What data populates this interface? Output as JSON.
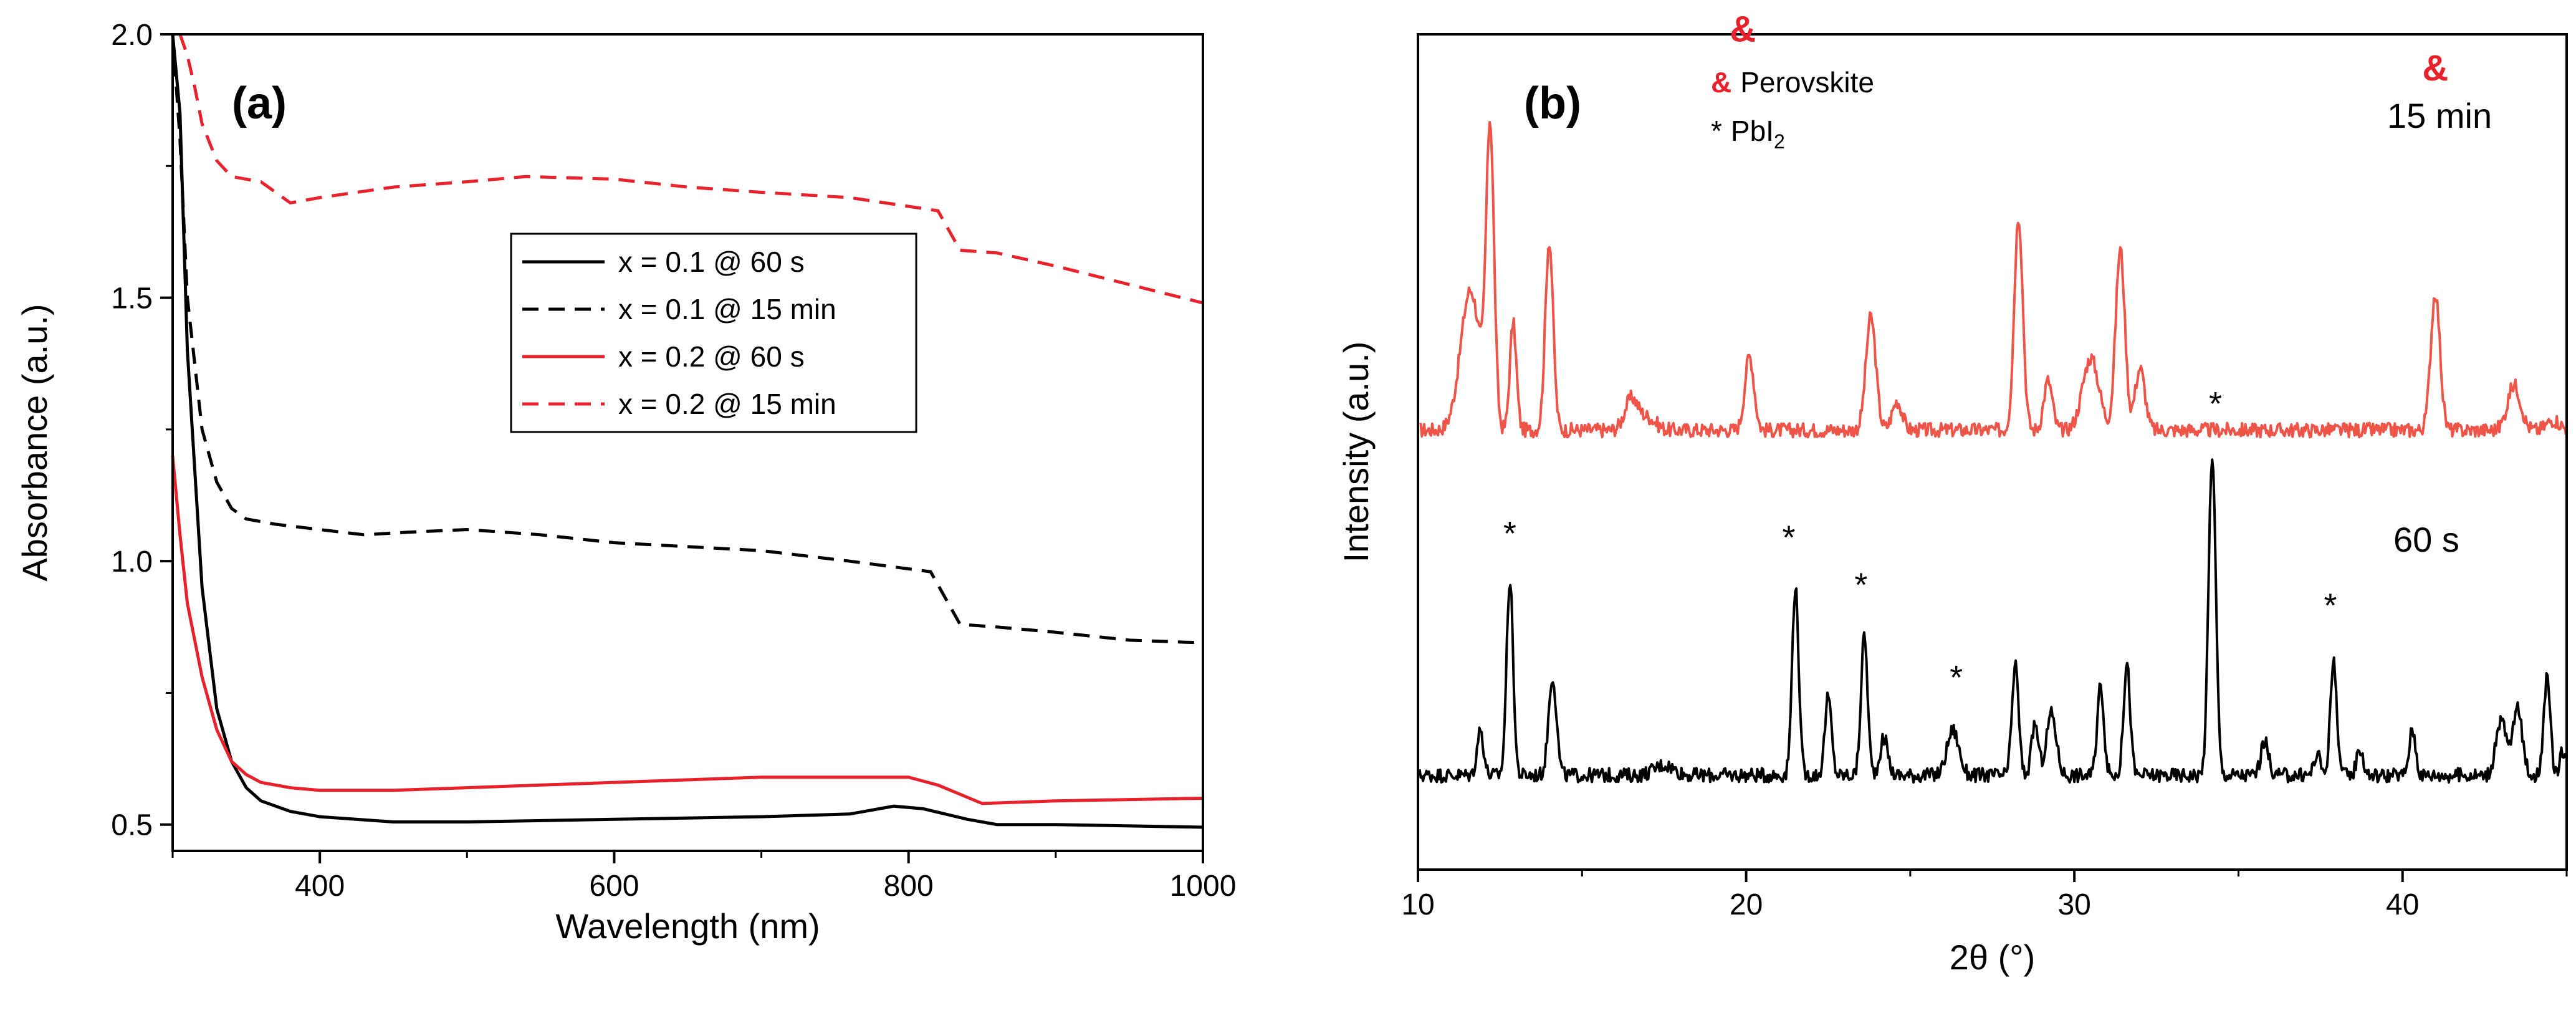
{
  "colors": {
    "black_series": "#000000",
    "red_series": "#e8212a",
    "xrd_red": "#ee5448"
  },
  "chart_data": [
    {
      "type": "line",
      "panel_label": "(a)",
      "xlabel": "Wavelength (nm)",
      "ylabel": "Absorbance (a.u.)",
      "xlim": [
        300,
        1000
      ],
      "ylim": [
        0.45,
        2.0
      ],
      "xticks": [
        400,
        600,
        800,
        1000
      ],
      "yticks": [
        0.5,
        1.0,
        1.5,
        2.0
      ],
      "xtick_labels": [
        "400",
        "600",
        "800",
        "1000"
      ],
      "ytick_labels": [
        "0.5",
        "1.0",
        "1.5",
        "2.0"
      ],
      "grid": false,
      "legend_position": "center-right",
      "series": [
        {
          "name": "x = 0.1 @ 60 s",
          "color": "#000000",
          "style": "solid",
          "x": [
            300,
            305,
            310,
            320,
            330,
            340,
            350,
            360,
            380,
            400,
            450,
            500,
            600,
            700,
            760,
            790,
            810,
            840,
            860,
            900,
            1000
          ],
          "y": [
            2.0,
            1.85,
            1.4,
            0.95,
            0.72,
            0.62,
            0.57,
            0.545,
            0.525,
            0.515,
            0.505,
            0.505,
            0.51,
            0.515,
            0.52,
            0.535,
            0.53,
            0.51,
            0.5,
            0.5,
            0.495
          ]
        },
        {
          "name": "x = 0.1 @ 15 min",
          "color": "#000000",
          "style": "dashed",
          "x": [
            300,
            305,
            310,
            320,
            330,
            340,
            350,
            370,
            400,
            430,
            460,
            500,
            550,
            600,
            700,
            760,
            815,
            835,
            860,
            900,
            950,
            1000
          ],
          "y": [
            2.0,
            1.8,
            1.5,
            1.25,
            1.15,
            1.1,
            1.08,
            1.07,
            1.06,
            1.05,
            1.055,
            1.06,
            1.05,
            1.035,
            1.02,
            1.0,
            0.98,
            0.88,
            0.875,
            0.865,
            0.85,
            0.845
          ]
        },
        {
          "name": "x = 0.2 @ 60 s",
          "color": "#e8212a",
          "style": "solid",
          "x": [
            300,
            305,
            310,
            320,
            330,
            340,
            350,
            360,
            380,
            400,
            450,
            500,
            600,
            700,
            760,
            800,
            820,
            850,
            900,
            1000
          ],
          "y": [
            1.2,
            1.05,
            0.92,
            0.78,
            0.68,
            0.62,
            0.595,
            0.58,
            0.57,
            0.565,
            0.565,
            0.57,
            0.58,
            0.59,
            0.59,
            0.59,
            0.575,
            0.54,
            0.545,
            0.55
          ]
        },
        {
          "name": "x = 0.2 @ 15 min",
          "color": "#e8212a",
          "style": "dashed",
          "x": [
            305,
            310,
            315,
            320,
            330,
            340,
            350,
            360,
            380,
            400,
            450,
            500,
            540,
            600,
            650,
            700,
            760,
            820,
            835,
            860,
            900,
            1000
          ],
          "y": [
            2.0,
            1.96,
            1.9,
            1.83,
            1.76,
            1.73,
            1.725,
            1.72,
            1.68,
            1.69,
            1.71,
            1.72,
            1.73,
            1.725,
            1.71,
            1.7,
            1.69,
            1.665,
            1.59,
            1.585,
            1.56,
            1.49
          ]
        }
      ]
    },
    {
      "type": "line",
      "panel_label": "(b)",
      "xlabel": "2θ (°)",
      "ylabel": "Intensity (a.u.)",
      "xlim": [
        10,
        45
      ],
      "xticks": [
        10,
        20,
        30,
        40
      ],
      "xtick_labels": [
        "10",
        "20",
        "30",
        "40"
      ],
      "y_tick_labels_shown": false,
      "grid": false,
      "legend_entries": [
        {
          "marker": "&",
          "label": "Perovskite",
          "color": "#e8212a"
        },
        {
          "marker": "*",
          "label": "PbI",
          "subscript": "2",
          "color": "#000000"
        }
      ],
      "series": [
        {
          "name": "15 min",
          "color": "#ee5448",
          "baseline": 60,
          "peaks": [
            [
              11.6,
              68,
              0.3
            ],
            [
              12.2,
              142,
              0.12
            ],
            [
              12.9,
              52,
              0.1
            ],
            [
              14.0,
              92,
              0.12
            ],
            [
              16.5,
              15,
              0.2
            ],
            [
              17.0,
              6,
              0.25
            ],
            [
              20.1,
              36,
              0.14
            ],
            [
              23.8,
              55,
              0.15
            ],
            [
              24.6,
              14,
              0.15
            ],
            [
              28.3,
              104,
              0.13
            ],
            [
              29.2,
              24,
              0.13
            ],
            [
              30.5,
              35,
              0.25
            ],
            [
              31.4,
              88,
              0.14
            ],
            [
              32.0,
              30,
              0.15
            ],
            [
              41.0,
              67,
              0.14
            ],
            [
              43.4,
              22,
              0.2
            ],
            [
              44.6,
              5,
              0.2
            ]
          ]
        },
        {
          "name": "60 s",
          "color": "#000000",
          "baseline": 8,
          "peaks": [
            [
              11.9,
              22,
              0.1
            ],
            [
              12.8,
              95,
              0.1
            ],
            [
              14.1,
              48,
              0.12
            ],
            [
              17.5,
              5,
              0.3
            ],
            [
              21.5,
              92,
              0.1
            ],
            [
              22.5,
              38,
              0.1
            ],
            [
              23.6,
              68,
              0.1
            ],
            [
              24.2,
              18,
              0.12
            ],
            [
              26.3,
              22,
              0.18
            ],
            [
              28.2,
              54,
              0.1
            ],
            [
              28.8,
              25,
              0.1
            ],
            [
              29.3,
              30,
              0.15
            ],
            [
              30.8,
              44,
              0.1
            ],
            [
              31.6,
              54,
              0.1
            ],
            [
              34.2,
              156,
              0.11
            ],
            [
              35.8,
              16,
              0.12
            ],
            [
              37.4,
              10,
              0.1
            ],
            [
              37.9,
              55,
              0.1
            ],
            [
              38.7,
              13,
              0.1
            ],
            [
              40.3,
              22,
              0.1
            ],
            [
              43.0,
              27,
              0.15
            ],
            [
              43.5,
              32,
              0.15
            ],
            [
              44.4,
              47,
              0.1
            ],
            [
              44.9,
              12,
              0.1
            ]
          ]
        }
      ],
      "annotations": [
        {
          "text": "&",
          "x": 14.4,
          "color": "#e8212a",
          "series": "15 min",
          "level": 268
        },
        {
          "text": "&",
          "x": 19.9,
          "color": "#e8212a",
          "series": "15 min",
          "level": 189
        },
        {
          "text": "&",
          "x": 28.3,
          "color": "#e8212a",
          "series": "15 min",
          "level": 295
        },
        {
          "text": "&",
          "x": 31.4,
          "color": "#e8212a",
          "series": "15 min",
          "level": 262
        },
        {
          "text": "&",
          "x": 41.0,
          "color": "#e8212a",
          "series": "15 min",
          "level": 170
        },
        {
          "text": "*",
          "x": 12.8,
          "color": "#000000",
          "series": "60 s",
          "level": 120
        },
        {
          "text": "*",
          "x": 21.3,
          "color": "#000000",
          "series": "60 s",
          "level": 118
        },
        {
          "text": "*",
          "x": 23.5,
          "color": "#000000",
          "series": "60 s",
          "level": 95
        },
        {
          "text": "*",
          "x": 26.4,
          "color": "#000000",
          "series": "60 s",
          "level": 50
        },
        {
          "text": "*",
          "x": 34.3,
          "color": "#000000",
          "series": "60 s",
          "level": 183
        },
        {
          "text": "*",
          "x": 37.8,
          "color": "#000000",
          "series": "60 s",
          "level": 85
        }
      ],
      "series_labels": [
        "15 min",
        "60 s"
      ]
    }
  ]
}
